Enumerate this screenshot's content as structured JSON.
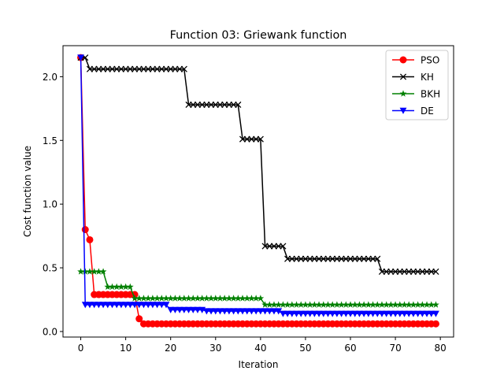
{
  "chart_data": {
    "type": "line",
    "title": "Function 03: Griewank function",
    "xlabel": "Iteration",
    "ylabel": "Cost function value",
    "xlim": [
      -3.95,
      82.95
    ],
    "ylim": [
      -0.0435,
      2.2435
    ],
    "xticks": [
      0,
      10,
      20,
      30,
      40,
      50,
      60,
      70,
      80
    ],
    "yticks": [
      0.0,
      0.5,
      1.0,
      1.5,
      2.0
    ],
    "ytick_labels": [
      "0.0",
      "0.5",
      "1.0",
      "1.5",
      "2.0"
    ],
    "grid": false,
    "legend_position": "top-right",
    "x_range": [
      0,
      79
    ],
    "series": [
      {
        "name": "PSO",
        "color": "#ff0000",
        "marker": "circle",
        "segments": [
          {
            "from": 0,
            "to": 0,
            "value": 2.15
          },
          {
            "from": 1,
            "to": 1,
            "value": 0.8
          },
          {
            "from": 2,
            "to": 2,
            "value": 0.72
          },
          {
            "from": 3,
            "to": 12,
            "value": 0.29
          },
          {
            "from": 13,
            "to": 13,
            "value": 0.1
          },
          {
            "from": 14,
            "to": 79,
            "value": 0.06
          }
        ]
      },
      {
        "name": "KH",
        "color": "#000000",
        "marker": "x",
        "segments": [
          {
            "from": 0,
            "to": 1,
            "value": 2.15
          },
          {
            "from": 2,
            "to": 23,
            "value": 2.06
          },
          {
            "from": 24,
            "to": 35,
            "value": 1.78
          },
          {
            "from": 36,
            "to": 40,
            "value": 1.51
          },
          {
            "from": 41,
            "to": 45,
            "value": 0.67
          },
          {
            "from": 46,
            "to": 66,
            "value": 0.57
          },
          {
            "from": 67,
            "to": 79,
            "value": 0.47
          }
        ]
      },
      {
        "name": "BKH",
        "color": "#008000",
        "marker": "star",
        "segments": [
          {
            "from": 0,
            "to": 5,
            "value": 0.47
          },
          {
            "from": 6,
            "to": 11,
            "value": 0.35
          },
          {
            "from": 12,
            "to": 40,
            "value": 0.26
          },
          {
            "from": 41,
            "to": 79,
            "value": 0.21
          }
        ]
      },
      {
        "name": "DE",
        "color": "#0000ff",
        "marker": "triangle-down",
        "segments": [
          {
            "from": 0,
            "to": 0,
            "value": 2.15
          },
          {
            "from": 1,
            "to": 19,
            "value": 0.21
          },
          {
            "from": 20,
            "to": 27,
            "value": 0.17
          },
          {
            "from": 28,
            "to": 44,
            "value": 0.16
          },
          {
            "from": 45,
            "to": 79,
            "value": 0.14
          }
        ]
      }
    ]
  }
}
